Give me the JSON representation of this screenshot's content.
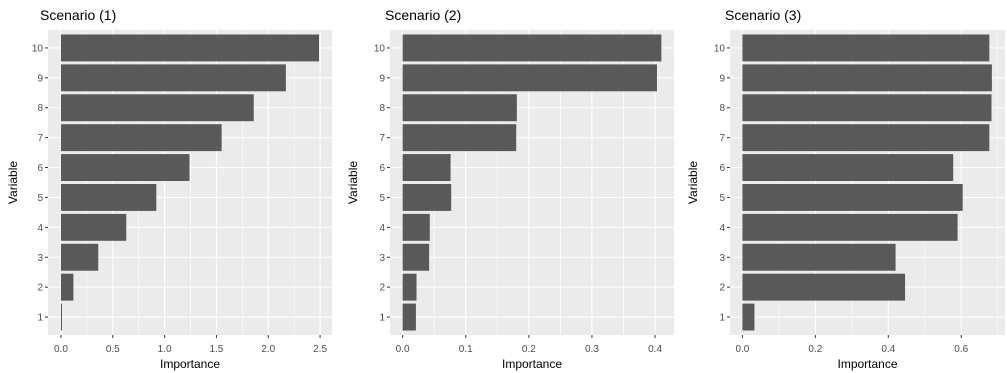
{
  "chart_data": [
    {
      "type": "bar",
      "orientation": "horizontal",
      "title": "Scenario (1)",
      "xlabel": "Importance",
      "ylabel": "Variable",
      "categories": [
        "1",
        "2",
        "3",
        "4",
        "5",
        "6",
        "7",
        "8",
        "9",
        "10"
      ],
      "values": [
        0.01,
        0.12,
        0.36,
        0.63,
        0.92,
        1.24,
        1.55,
        1.86,
        2.17,
        2.49
      ],
      "xticks": [
        0.0,
        0.5,
        1.0,
        1.5,
        2.0,
        2.5
      ],
      "xtick_labels": [
        "0.0",
        "0.5",
        "1.0",
        "1.5",
        "2.0",
        "2.5"
      ],
      "xlim": [
        -0.125,
        2.615
      ],
      "grid": true,
      "bar_color": "#595959",
      "panel_color": "#ebebeb",
      "grid_color": "#ffffff"
    },
    {
      "type": "bar",
      "orientation": "horizontal",
      "title": "Scenario (2)",
      "xlabel": "Importance",
      "ylabel": "Variable",
      "categories": [
        "1",
        "2",
        "3",
        "4",
        "5",
        "6",
        "7",
        "8",
        "9",
        "10"
      ],
      "values": [
        0.021,
        0.022,
        0.042,
        0.043,
        0.077,
        0.076,
        0.18,
        0.181,
        0.403,
        0.41
      ],
      "xticks": [
        0.0,
        0.1,
        0.2,
        0.3,
        0.4
      ],
      "xtick_labels": [
        "0.0",
        "0.1",
        "0.2",
        "0.3",
        "0.4"
      ],
      "xlim": [
        -0.02,
        0.43
      ],
      "grid": true,
      "bar_color": "#595959",
      "panel_color": "#ebebeb",
      "grid_color": "#ffffff"
    },
    {
      "type": "bar",
      "orientation": "horizontal",
      "title": "Scenario (3)",
      "xlabel": "Importance",
      "ylabel": "Variable",
      "categories": [
        "1",
        "2",
        "3",
        "4",
        "5",
        "6",
        "7",
        "8",
        "9",
        "10"
      ],
      "values": [
        0.033,
        0.446,
        0.42,
        0.59,
        0.604,
        0.578,
        0.677,
        0.683,
        0.684,
        0.677
      ],
      "xticks": [
        0.0,
        0.2,
        0.4,
        0.6
      ],
      "xtick_labels": [
        "0.0",
        "0.2",
        "0.4",
        "0.6"
      ],
      "xlim": [
        -0.034,
        0.72
      ],
      "grid": true,
      "bar_color": "#595959",
      "panel_color": "#ebebeb",
      "grid_color": "#ffffff"
    }
  ]
}
